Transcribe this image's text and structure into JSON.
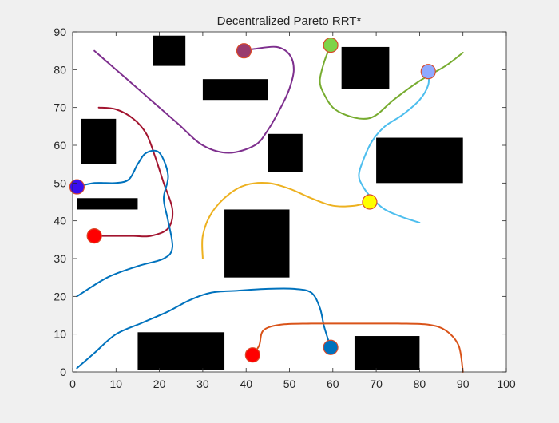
{
  "chart_data": {
    "type": "line",
    "title": "Decentralized Pareto RRT*",
    "xlabel": "",
    "ylabel": "",
    "xlim": [
      0,
      100
    ],
    "ylim": [
      0,
      90
    ],
    "xticks": [
      0,
      10,
      20,
      30,
      40,
      50,
      60,
      70,
      80,
      90,
      100
    ],
    "yticks": [
      0,
      10,
      20,
      30,
      40,
      50,
      60,
      70,
      80,
      90
    ],
    "grid": false,
    "legend": "none",
    "obstacles": [
      {
        "x": [
          18.5,
          26
        ],
        "y": [
          81,
          89
        ]
      },
      {
        "x": [
          30,
          45
        ],
        "y": [
          72,
          77.5
        ]
      },
      {
        "x": [
          62,
          73
        ],
        "y": [
          75,
          86
        ]
      },
      {
        "x": [
          2,
          10
        ],
        "y": [
          55,
          67
        ]
      },
      {
        "x": [
          45,
          53
        ],
        "y": [
          53,
          63
        ]
      },
      {
        "x": [
          70,
          90
        ],
        "y": [
          50,
          62
        ]
      },
      {
        "x": [
          1,
          15
        ],
        "y": [
          43,
          46
        ]
      },
      {
        "x": [
          35,
          50
        ],
        "y": [
          25,
          43
        ]
      },
      {
        "x": [
          15,
          35
        ],
        "y": [
          0.5,
          10.5
        ]
      },
      {
        "x": [
          65,
          80
        ],
        "y": [
          0.5,
          9.5
        ]
      }
    ],
    "series": [
      {
        "color": "#7e2f8e",
        "points": [
          [
            5,
            85
          ],
          [
            12,
            78
          ],
          [
            18,
            72
          ],
          [
            24,
            66
          ],
          [
            30,
            60
          ],
          [
            36,
            58
          ],
          [
            42,
            60
          ],
          [
            45,
            64
          ],
          [
            48,
            70
          ],
          [
            50,
            75
          ],
          [
            51,
            80
          ],
          [
            50,
            84
          ],
          [
            47,
            86
          ],
          [
            42,
            85.5
          ],
          [
            39.5,
            85
          ]
        ],
        "marker": null
      },
      {
        "color": "#a2142f",
        "points": [
          [
            6,
            70
          ],
          [
            10,
            69.5
          ],
          [
            14,
            67
          ],
          [
            17,
            63
          ],
          [
            19,
            57
          ],
          [
            21,
            50
          ],
          [
            23,
            43
          ],
          [
            22,
            38
          ],
          [
            18,
            36
          ],
          [
            14,
            36
          ],
          [
            10,
            36
          ],
          [
            5,
            36
          ]
        ],
        "marker": {
          "x": 5,
          "y": 36,
          "color": "#ff0000"
        }
      },
      {
        "color": "#0072bd",
        "points": [
          [
            1,
            49
          ],
          [
            5,
            50
          ],
          [
            10,
            50
          ],
          [
            13,
            51
          ],
          [
            15,
            55
          ],
          [
            17,
            58
          ],
          [
            20,
            58
          ],
          [
            22,
            52
          ],
          [
            21,
            46
          ],
          [
            22,
            40
          ],
          [
            23,
            33
          ],
          [
            21,
            30
          ],
          [
            15,
            28
          ],
          [
            8,
            25
          ],
          [
            1,
            20
          ]
        ],
        "marker": {
          "x": 1,
          "y": 49,
          "color": "#3a0ef0"
        }
      },
      {
        "color": "#edb120",
        "points": [
          [
            30,
            30
          ],
          [
            30,
            36
          ],
          [
            32,
            42
          ],
          [
            36,
            47
          ],
          [
            40,
            49.5
          ],
          [
            45,
            50
          ],
          [
            50,
            48.5
          ],
          [
            55,
            46
          ],
          [
            60,
            44
          ],
          [
            65,
            44
          ],
          [
            68.5,
            45
          ]
        ],
        "marker": {
          "x": 68.5,
          "y": 45,
          "color": "#ffff00"
        }
      },
      {
        "color": "#77ac30",
        "points": [
          [
            90,
            84.5
          ],
          [
            86,
            81
          ],
          [
            80,
            77
          ],
          [
            74,
            72
          ],
          [
            70,
            68
          ],
          [
            67,
            67
          ],
          [
            63,
            68
          ],
          [
            60,
            70
          ],
          [
            58,
            73.5
          ],
          [
            57,
            77
          ],
          [
            58,
            82
          ],
          [
            59.5,
            86.5
          ]
        ],
        "marker": {
          "x": 59.5,
          "y": 86.5,
          "color": "#7ed348"
        }
      },
      {
        "color": "#4dbeee",
        "points": [
          [
            82,
            79.5
          ],
          [
            82,
            76
          ],
          [
            80,
            72
          ],
          [
            76,
            68
          ],
          [
            72,
            65
          ],
          [
            69,
            61
          ],
          [
            67,
            56
          ],
          [
            66,
            52
          ],
          [
            67,
            49
          ],
          [
            69,
            46
          ],
          [
            72,
            43
          ],
          [
            76,
            41
          ],
          [
            80,
            39.5
          ]
        ],
        "marker": {
          "x": 82,
          "y": 79.5,
          "color": "#8fa9ff"
        }
      },
      {
        "color": "#0072bd",
        "points": [
          [
            1,
            1
          ],
          [
            5,
            5
          ],
          [
            10,
            10
          ],
          [
            16,
            13
          ],
          [
            22,
            16
          ],
          [
            27,
            19
          ],
          [
            32,
            21
          ],
          [
            38,
            21.5
          ],
          [
            45,
            22
          ],
          [
            51,
            22
          ],
          [
            55,
            21
          ],
          [
            57,
            17
          ],
          [
            58,
            12
          ],
          [
            59.5,
            6.5
          ]
        ],
        "marker": {
          "x": 59.5,
          "y": 6.5,
          "color": "#0072bd"
        }
      },
      {
        "color": "#d95319",
        "points": [
          [
            41.5,
            4.5
          ],
          [
            43,
            7
          ],
          [
            44,
            11
          ],
          [
            48,
            12.5
          ],
          [
            55,
            12.8
          ],
          [
            65,
            12.8
          ],
          [
            75,
            12.8
          ],
          [
            82,
            12.5
          ],
          [
            86,
            11
          ],
          [
            89,
            7
          ],
          [
            90,
            0
          ]
        ],
        "marker": {
          "x": 41.5,
          "y": 4.5,
          "color": "#ff0000"
        }
      },
      {
        "color": null,
        "points": [],
        "marker": {
          "x": 39.5,
          "y": 85,
          "color": "#9a3b6e"
        }
      }
    ]
  }
}
